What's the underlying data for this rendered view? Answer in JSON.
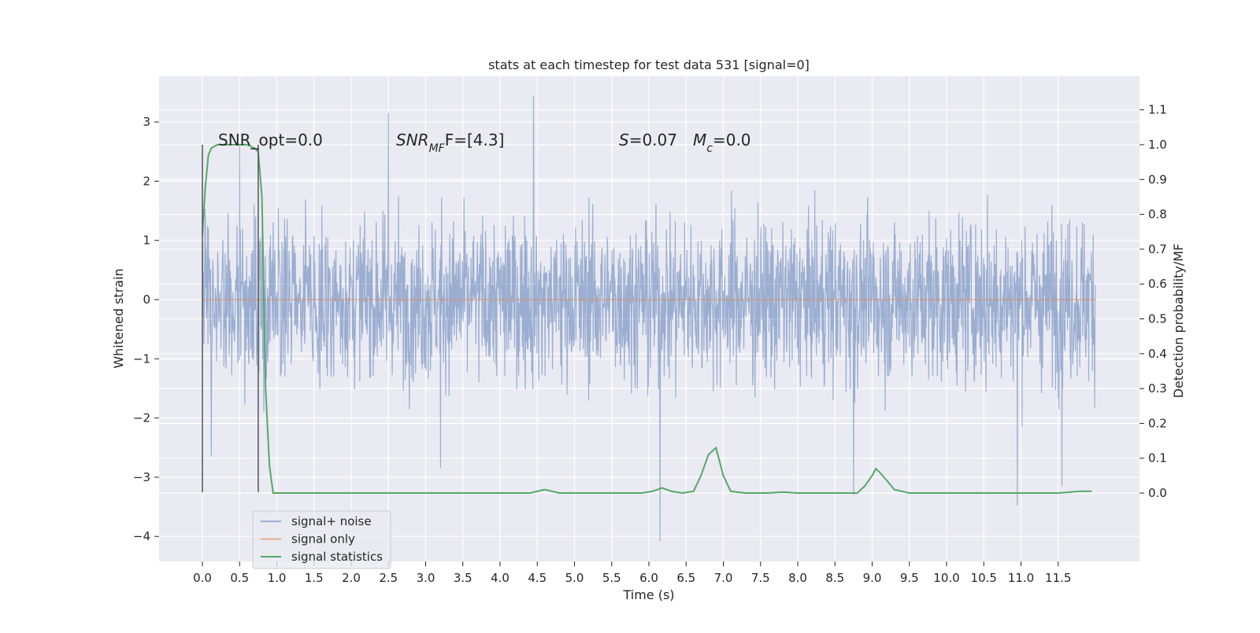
{
  "chart_data": {
    "type": "line",
    "title": "stats at each timestep for test data 531 [signal=0]",
    "xlabel": "Time (s)",
    "ylabel": "Whitened strain",
    "y2label": "Detection probability/MF",
    "xlim": [
      -0.58,
      12.6
    ],
    "ylim": [
      -4.5,
      3.8
    ],
    "y2lim": [
      -0.2,
      1.2
    ],
    "x_ticks": [
      0.0,
      0.5,
      1.0,
      1.5,
      2.0,
      2.5,
      3.0,
      3.5,
      4.0,
      4.5,
      5.0,
      5.5,
      6.0,
      6.5,
      7.0,
      7.5,
      8.0,
      8.5,
      9.0,
      9.5,
      10.0,
      10.5,
      11.0,
      11.5
    ],
    "x_tick_labels": [
      "0.0",
      "0.5",
      "1.0",
      "1.5",
      "2.0",
      "2.5",
      "3.0",
      "3.5",
      "4.0",
      "4.5",
      "5.0",
      "5.5",
      "6.0",
      "6.5",
      "7.0",
      "7.5",
      "8.0",
      "8.5",
      "9.0",
      "9.5",
      "10.0",
      "10.5",
      "11.0",
      "11.5"
    ],
    "y_ticks": [
      3,
      2,
      1,
      0,
      -1,
      -2,
      -3,
      -4
    ],
    "y_tick_labels": [
      "3",
      "2",
      "1",
      "0",
      "−1",
      "−2",
      "−3",
      "−4"
    ],
    "y2_ticks": [
      1.1,
      1.0,
      0.9,
      0.8,
      0.7,
      0.6,
      0.5,
      0.4,
      0.3,
      0.2,
      0.1,
      0.0
    ],
    "y2_tick_labels": [
      "1.1",
      "1.0",
      "0.9",
      "0.8",
      "0.7",
      "0.6",
      "0.5",
      "0.4",
      "0.3",
      "0.2",
      "0.1",
      "0.0"
    ],
    "grid": true,
    "legend_position": "lower-left",
    "series": [
      {
        "name": "signal+ noise",
        "color": "#4c72b0",
        "axis": "left",
        "x_range": [
          0.0,
          12.0
        ],
        "typical_range": [
          -1.5,
          1.5
        ],
        "peaks": [
          [
            0.5,
            2.6
          ],
          [
            2.5,
            3.15
          ],
          [
            4.45,
            3.45
          ],
          [
            3.2,
            -2.85
          ],
          [
            6.15,
            -4.08
          ],
          [
            8.75,
            -3.3
          ],
          [
            10.95,
            -3.48
          ],
          [
            11.55,
            -3.15
          ],
          [
            0.12,
            -2.65
          ]
        ]
      },
      {
        "name": "signal only",
        "color": "#dd8452",
        "axis": "left",
        "x": [
          0.0,
          12.0
        ],
        "y": [
          0.0,
          0.0
        ]
      },
      {
        "name": "signal statistics",
        "color": "#55a868",
        "axis": "right",
        "x": [
          0.0,
          0.04,
          0.08,
          0.12,
          0.2,
          0.3,
          0.5,
          0.6,
          0.7,
          0.75,
          0.8,
          0.85,
          0.9,
          0.95,
          1.0,
          1.5,
          2.0,
          3.0,
          4.0,
          4.4,
          4.6,
          4.8,
          5.0,
          5.5,
          5.9,
          6.05,
          6.18,
          6.3,
          6.45,
          6.6,
          6.7,
          6.8,
          6.9,
          7.0,
          7.1,
          7.3,
          7.6,
          7.8,
          8.0,
          8.5,
          8.8,
          8.9,
          9.0,
          9.05,
          9.1,
          9.2,
          9.3,
          9.5,
          10.0,
          10.5,
          11.0,
          11.5,
          11.8,
          11.95
        ],
        "y": [
          0.74,
          0.88,
          0.97,
          0.99,
          1.0,
          1.0,
          1.0,
          1.0,
          0.99,
          0.98,
          0.85,
          0.3,
          0.08,
          0.0,
          0.0,
          0.0,
          0.0,
          0.0,
          0.0,
          0.0,
          0.01,
          0.0,
          0.0,
          0.0,
          0.0,
          0.005,
          0.015,
          0.005,
          0.0,
          0.005,
          0.05,
          0.11,
          0.13,
          0.05,
          0.005,
          0.0,
          0.0,
          0.003,
          0.0,
          0.0,
          0.0,
          0.02,
          0.05,
          0.07,
          0.06,
          0.035,
          0.01,
          0.0,
          0.0,
          0.0,
          0.0,
          0.0,
          0.005,
          0.005
        ]
      }
    ],
    "vlines": [
      0.0,
      0.75
    ],
    "annotations": [
      {
        "segments": [
          {
            "text": "SNR_opt=0.0",
            "italic": false
          }
        ]
      },
      {
        "segments": [
          {
            "text": "SNR",
            "italic": true
          },
          {
            "text": "MF",
            "italic": true,
            "sub": true
          },
          {
            "text": "F=[4.3]",
            "italic": false
          }
        ]
      },
      {
        "segments": [
          {
            "text": "S",
            "italic": true
          },
          {
            "text": "=0.07",
            "italic": false
          }
        ]
      },
      {
        "segments": [
          {
            "text": "M",
            "italic": true
          },
          {
            "text": "c",
            "italic": true,
            "sub": true
          },
          {
            "text": "=0.0",
            "italic": false
          }
        ]
      }
    ],
    "colors": {
      "plot_background": "#eaeaf2",
      "grid": "#ffffff",
      "vline": "#555555"
    }
  }
}
